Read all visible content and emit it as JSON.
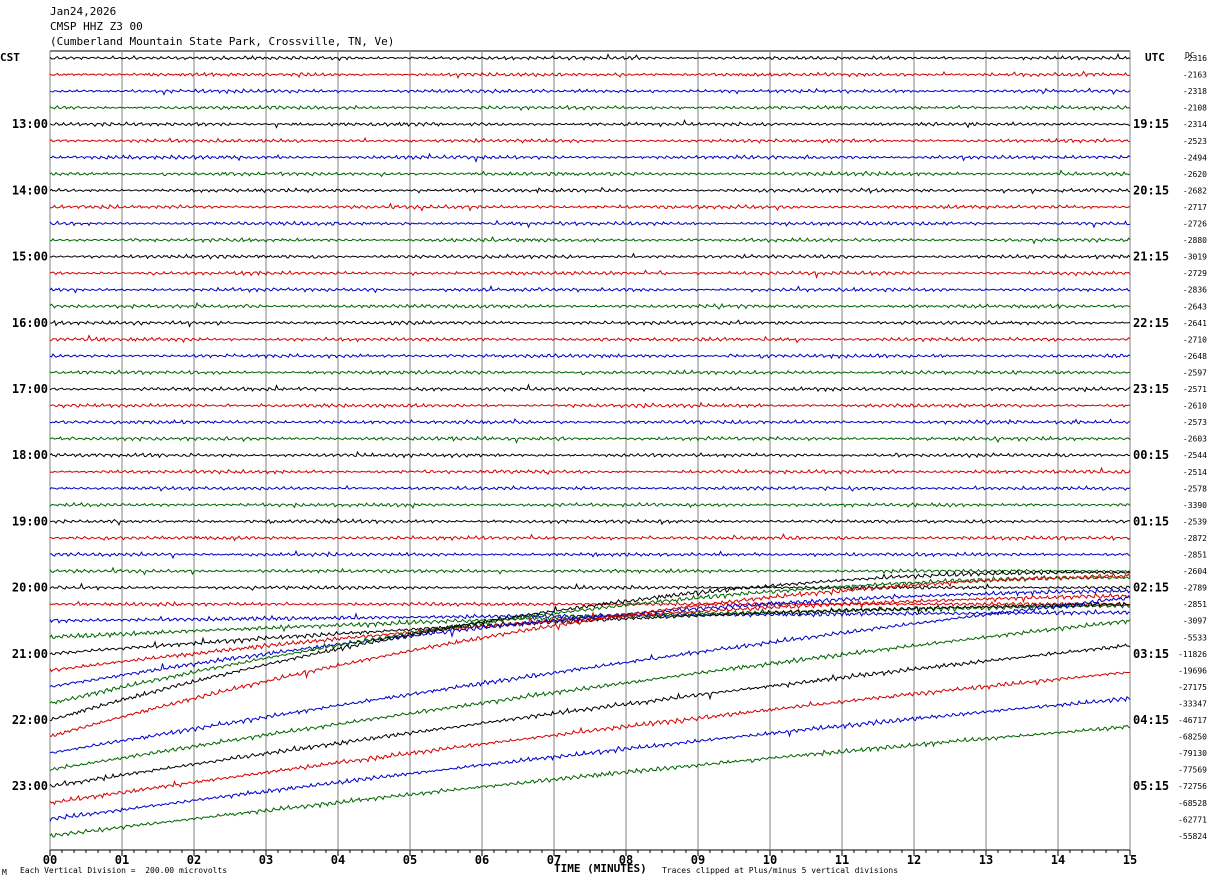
{
  "header": {
    "date": "Jan24,2026",
    "station": "CMSP HHZ Z3 00",
    "location": "(Cumberland Mountain State Park, Crossville, TN, Ve)"
  },
  "footer": {
    "scale_note": "Each Vertical Division =  200.00 microvolts",
    "clip_note": "Traces clipped at Plus/minus 5 vertical divisions",
    "corner_mark": "M"
  },
  "colors": {
    "black": "#000000",
    "red": "#d40000",
    "blue": "#0000c8",
    "green": "#006400",
    "grid": "#808080"
  },
  "chart_data": {
    "type": "line",
    "title": "",
    "xlabel": "TIME (MINUTES)",
    "left_axis_label": "CST",
    "right_axis_label": "UTC",
    "dc_label": "DC",
    "x_ticks": [
      "00",
      "01",
      "02",
      "03",
      "04",
      "05",
      "06",
      "07",
      "08",
      "09",
      "10",
      "11",
      "12",
      "13",
      "14",
      "15"
    ],
    "xlim": [
      0,
      15
    ],
    "left_hour_labels": [
      "13:00",
      "14:00",
      "15:00",
      "16:00",
      "17:00",
      "18:00",
      "19:00",
      "20:00",
      "21:00",
      "22:00",
      "23:00"
    ],
    "right_hour_labels": [
      "19:15",
      "20:15",
      "21:15",
      "22:15",
      "23:15",
      "00:15",
      "01:15",
      "02:15",
      "03:15",
      "04:15",
      "05:15"
    ],
    "trace_color_cycle": [
      "black",
      "red",
      "blue",
      "green"
    ],
    "dc_offsets": [
      "-2316",
      "-2163",
      "-2318",
      "-2108",
      "-2314",
      "-2523",
      "-2494",
      "-2620",
      "-2682",
      "-2717",
      "-2726",
      "-2880",
      "-3019",
      "-2729",
      "-2836",
      "-2643",
      "-2641",
      "-2710",
      "-2648",
      "-2597",
      "-2571",
      "-2610",
      "-2573",
      "-2603",
      "-2544",
      "-2514",
      "-2578",
      "-3390",
      "-2539",
      "-2872",
      "-2851",
      "-2604",
      "-2789",
      "-2851",
      "-3097",
      "-5533",
      "-11826",
      "-19696",
      "-27175",
      "-33347",
      "-46717",
      "-68250",
      "-79130",
      "-77569",
      "-72756",
      "-68528",
      "-62771",
      "-55824"
    ],
    "drift_end_rows": [
      0,
      0,
      0,
      0,
      0,
      0,
      0,
      0,
      0,
      0,
      0,
      0,
      0,
      0,
      0,
      0,
      0,
      0,
      0,
      0,
      0,
      0,
      0,
      0,
      0,
      0,
      0,
      0,
      0,
      0,
      0,
      0,
      0,
      0,
      -0.5,
      -1.9,
      -3.0,
      -4.5,
      -5.8,
      -7.6,
      -8.9,
      -9.7,
      -9.4,
      -9.0,
      -8.5,
      -7.9,
      -7.3,
      -6.6
    ],
    "drift_curvature": [
      0,
      0,
      0,
      0,
      0,
      0,
      0,
      0,
      0,
      0,
      0,
      0,
      0,
      0,
      0,
      0,
      0,
      0,
      0,
      0,
      0,
      0,
      0,
      0,
      0,
      0,
      0,
      0,
      0,
      0,
      0,
      0,
      0,
      0.1,
      0.2,
      0.3,
      0.35,
      0.4,
      0.45,
      0.5,
      0.55,
      0.45,
      0.1,
      0.1,
      0.1,
      0.1,
      0.1,
      0.1
    ]
  }
}
